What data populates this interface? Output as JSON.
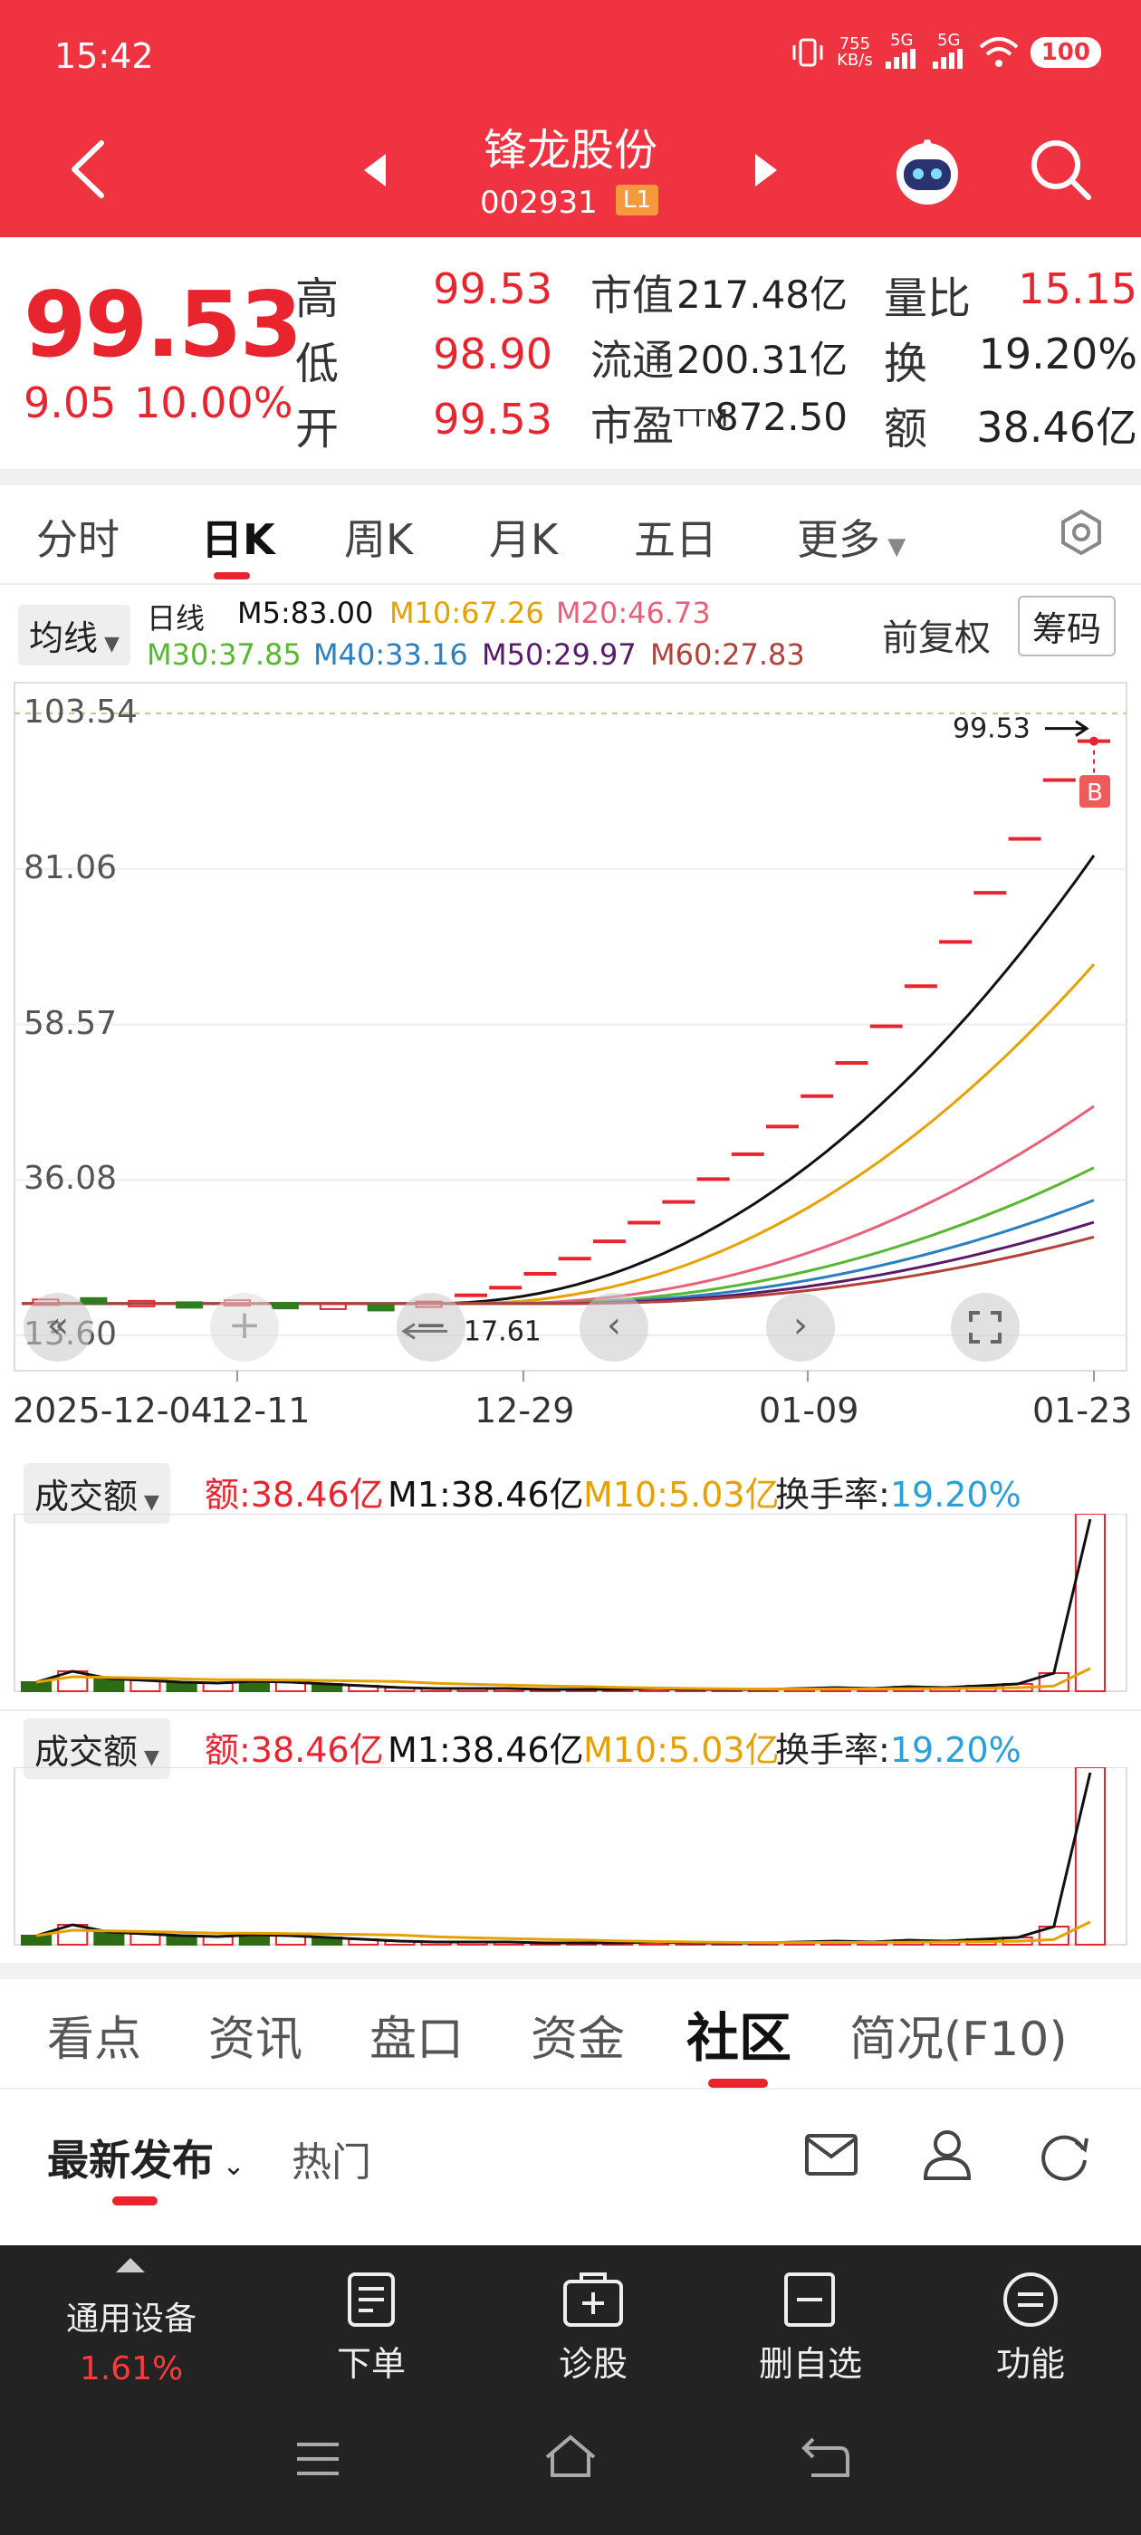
{
  "status_bar": {
    "time": "15:42",
    "net_speed": "755",
    "net_unit": "KB/s",
    "signal1": "5G",
    "signal2": "5G",
    "battery": "100"
  },
  "header": {
    "stock_name": "锋龙股份",
    "stock_code": "002931",
    "level": "L1"
  },
  "quote": {
    "price": "99.53",
    "change": "9.05",
    "change_pct": "10.00%",
    "high_label": "高",
    "high": "99.53",
    "low_label": "低",
    "low": "98.90",
    "open_label": "开",
    "open": "99.53",
    "mcap_label": "市值",
    "mcap": "217.48亿",
    "float_label": "流通",
    "float": "200.31亿",
    "pe_label": "市盈ᵀᵀᴹ",
    "pe": "872.50",
    "vr_label": "量比",
    "vr": "15.15",
    "turnover_label": "换",
    "turnover": "19.20%",
    "amount_label": "额",
    "amount": "38.46亿"
  },
  "ktabs": [
    "分时",
    "日K",
    "周K",
    "月K",
    "五日",
    "更多"
  ],
  "chart_header": {
    "indicator": "均线",
    "period": "日线",
    "m5": "M5:83.00",
    "m10": "M10:67.26",
    "m20": "M20:46.73",
    "m30": "M30:37.85",
    "m40": "M40:33.16",
    "m50": "M50:29.97",
    "m60": "M60:27.83",
    "adjust": "前复权",
    "chips": "筹码"
  },
  "chart_data": {
    "type": "candlestick",
    "y_ticks": [
      "103.54",
      "81.06",
      "58.57",
      "36.08",
      "13.60"
    ],
    "ylim": [
      13.6,
      103.54
    ],
    "x_ticks": [
      "2025-12-04",
      "12-11",
      "12-29",
      "01-09",
      "01-23"
    ],
    "max_label": "99.53",
    "min_label": "17.61",
    "buy_marker": "B",
    "limit_up_closes": [
      19.4,
      20.5,
      22.5,
      24.7,
      27.2,
      29.9,
      32.9,
      36.2,
      39.8,
      43.8,
      48.2,
      53.0,
      58.3,
      64.1,
      70.5,
      77.6,
      85.4,
      93.9,
      99.53
    ],
    "colors": {
      "m5": "#111111",
      "m10": "#e6a100",
      "m20": "#e8607a",
      "m30": "#55b82e",
      "m40": "#2a7fc1",
      "m50": "#5a1a6b",
      "m60": "#b2413a"
    }
  },
  "volume_panel": {
    "title": "成交额",
    "amount": "额:38.46亿",
    "m1": "M1:38.46亿",
    "m10": "M10:5.03亿",
    "turnover_label": "换手率:",
    "turnover": "19.20%"
  },
  "bottom_tabs": [
    "看点",
    "资讯",
    "盘口",
    "资金",
    "社区",
    "简况(F10)"
  ],
  "community": {
    "latest": "最新发布",
    "hot": "热门"
  },
  "bottom_bar": {
    "sector": "通用设备",
    "sector_pct": "1.61%",
    "items": [
      "下单",
      "诊股",
      "删自选",
      "功能"
    ]
  }
}
